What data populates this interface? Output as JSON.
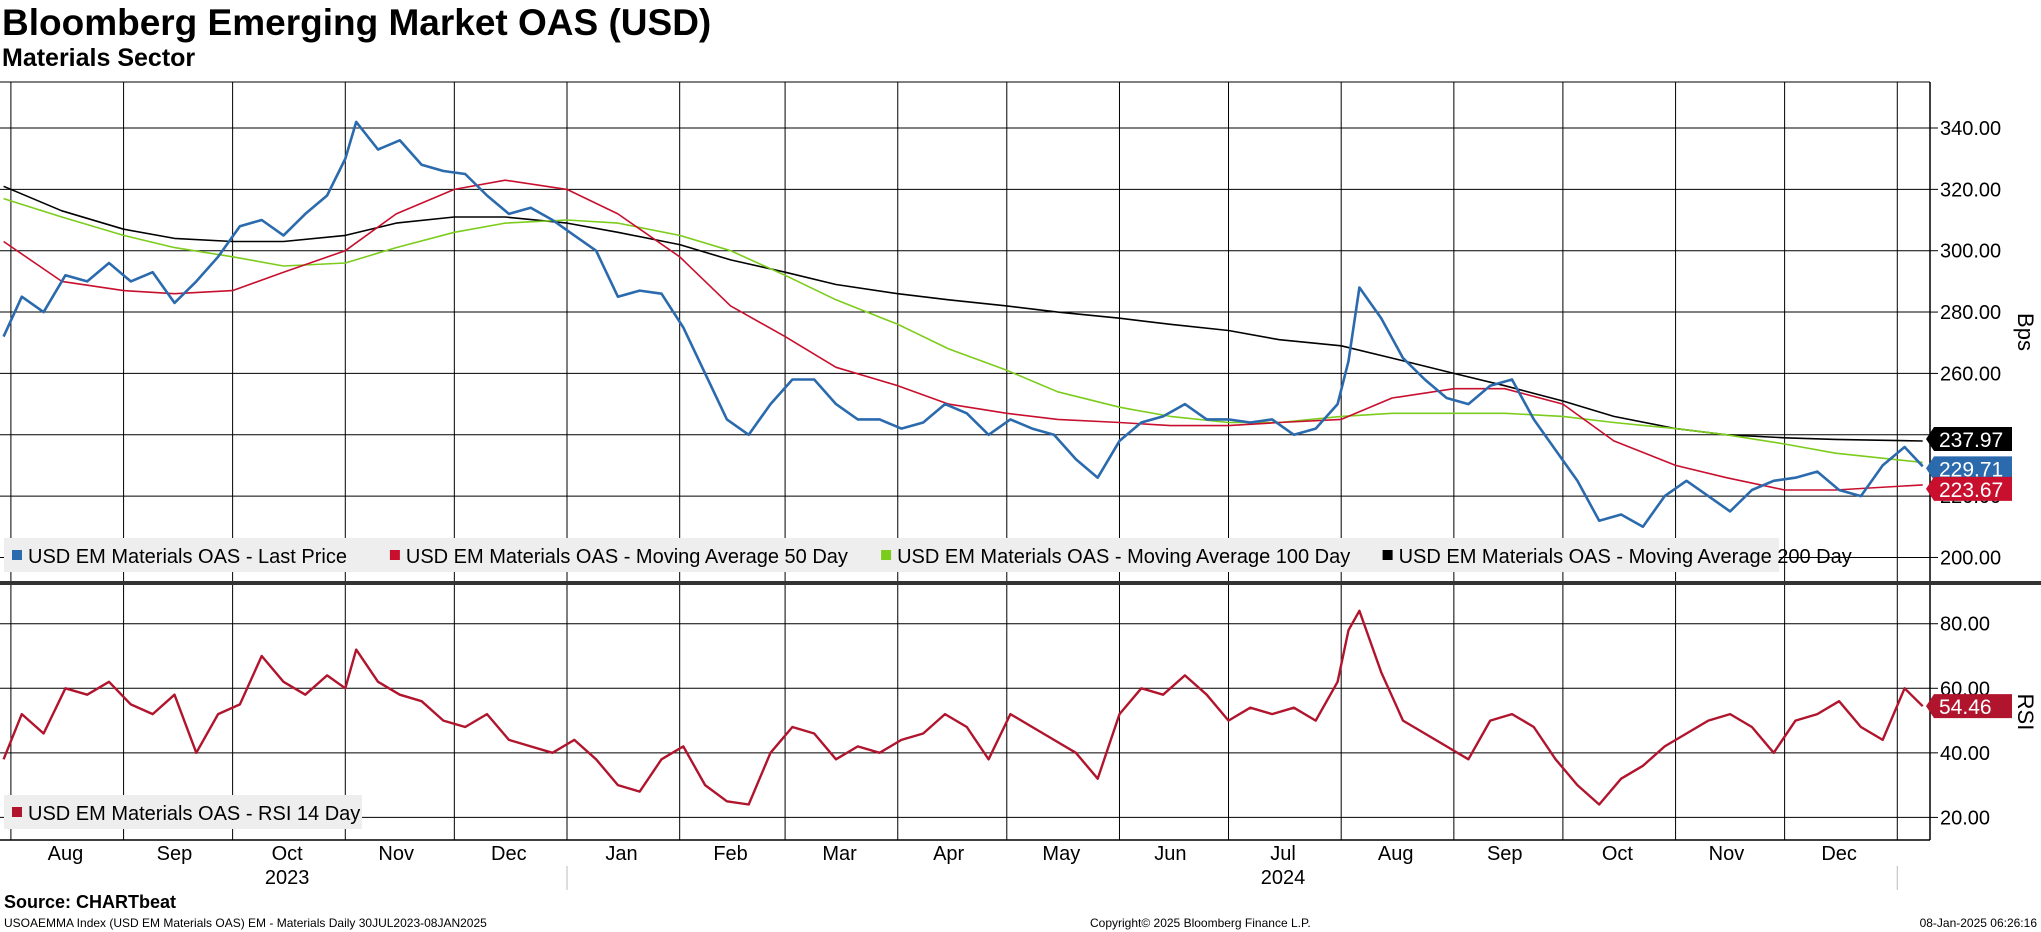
{
  "header": {
    "title": "Bloomberg Emerging Market OAS (USD)",
    "subtitle": "Materials Sector"
  },
  "footer": {
    "source": "Source: CHARTbeat",
    "description": "USOAEMMA Index (USD EM Materials OAS) EM - Materials  Daily 30JUL2023-08JAN2025",
    "copyright": "Copyright© 2025 Bloomberg Finance L.P.",
    "timestamp": "08-Jan-2025 06:26:16"
  },
  "colors": {
    "last_price": "#2a6aad",
    "ma50": "#c8102e",
    "ma100": "#7ccc1c",
    "ma200": "#000000",
    "rsi": "#b0152d",
    "grid": "#000000"
  },
  "chart_data": [
    {
      "type": "line",
      "panel": "price",
      "ylabel": "Bps",
      "ylim": [
        192,
        355
      ],
      "yticks": [
        "200.00",
        "220.00",
        "240.00",
        "260.00",
        "280.00",
        "300.00",
        "320.00",
        "340.00"
      ],
      "ytick_values": [
        200,
        220,
        240,
        260,
        280,
        300,
        320,
        340
      ],
      "x_axis": {
        "start": "2023-07-30",
        "end": "2025-01-08",
        "month_labels": [
          "Aug",
          "Sep",
          "Oct",
          "Nov",
          "Dec",
          "Jan",
          "Feb",
          "Mar",
          "Apr",
          "May",
          "Jun",
          "Jul",
          "Aug",
          "Sep",
          "Oct",
          "Nov",
          "Dec"
        ],
        "month_label_dates": [
          "2023-08-16",
          "2023-09-15",
          "2023-10-16",
          "2023-11-15",
          "2023-12-16",
          "2024-01-16",
          "2024-02-15",
          "2024-03-16",
          "2024-04-15",
          "2024-05-16",
          "2024-06-15",
          "2024-07-16",
          "2024-08-16",
          "2024-09-15",
          "2024-10-16",
          "2024-11-15",
          "2024-12-16"
        ],
        "gridline_dates": [
          "2023-08-01",
          "2023-09-01",
          "2023-10-01",
          "2023-11-01",
          "2023-12-01",
          "2024-01-01",
          "2024-02-01",
          "2024-03-01",
          "2024-04-01",
          "2024-05-01",
          "2024-06-01",
          "2024-07-01",
          "2024-08-01",
          "2024-09-01",
          "2024-10-01",
          "2024-11-01",
          "2024-12-01",
          "2025-01-01"
        ],
        "year_labels": [
          "2023",
          "2024"
        ],
        "year_label_dates": [
          "2023-10-16",
          "2024-07-16"
        ]
      },
      "legend": {
        "placement": "bottom-left",
        "entries": [
          "USD EM Materials OAS - Last Price",
          "USD EM Materials OAS - Moving Average 50 Day",
          "USD EM Materials OAS - Moving Average 100 Day",
          "USD EM Materials OAS - Moving Average 200 Day"
        ]
      },
      "last_value_labels": [
        {
          "series": "ma200",
          "text": "237.97",
          "value": 237.97
        },
        {
          "series": "last_price",
          "text": "229.71",
          "value": 229.71
        },
        {
          "series": "ma50",
          "text": "223.67",
          "value": 223.67
        }
      ],
      "series": [
        {
          "name": "USD EM Materials OAS - Last Price",
          "key": "last_price",
          "x": [
            "2023-07-30",
            "2023-08-04",
            "2023-08-10",
            "2023-08-16",
            "2023-08-22",
            "2023-08-28",
            "2023-09-03",
            "2023-09-09",
            "2023-09-15",
            "2023-09-21",
            "2023-09-27",
            "2023-10-03",
            "2023-10-09",
            "2023-10-15",
            "2023-10-21",
            "2023-10-27",
            "2023-11-01",
            "2023-11-04",
            "2023-11-10",
            "2023-11-16",
            "2023-11-22",
            "2023-11-28",
            "2023-12-04",
            "2023-12-10",
            "2023-12-16",
            "2023-12-22",
            "2023-12-28",
            "2024-01-03",
            "2024-01-09",
            "2024-01-15",
            "2024-01-21",
            "2024-01-27",
            "2024-02-02",
            "2024-02-08",
            "2024-02-14",
            "2024-02-20",
            "2024-02-26",
            "2024-03-03",
            "2024-03-09",
            "2024-03-15",
            "2024-03-21",
            "2024-03-27",
            "2024-04-02",
            "2024-04-08",
            "2024-04-14",
            "2024-04-20",
            "2024-04-26",
            "2024-05-02",
            "2024-05-08",
            "2024-05-14",
            "2024-05-20",
            "2024-05-26",
            "2024-06-01",
            "2024-06-07",
            "2024-06-13",
            "2024-06-19",
            "2024-06-25",
            "2024-07-01",
            "2024-07-07",
            "2024-07-13",
            "2024-07-19",
            "2024-07-25",
            "2024-07-31",
            "2024-08-03",
            "2024-08-06",
            "2024-08-12",
            "2024-08-18",
            "2024-08-24",
            "2024-08-30",
            "2024-09-05",
            "2024-09-11",
            "2024-09-17",
            "2024-09-23",
            "2024-09-29",
            "2024-10-05",
            "2024-10-11",
            "2024-10-17",
            "2024-10-23",
            "2024-10-29",
            "2024-11-04",
            "2024-11-10",
            "2024-11-16",
            "2024-11-22",
            "2024-11-28",
            "2024-12-04",
            "2024-12-10",
            "2024-12-16",
            "2024-12-22",
            "2024-12-28",
            "2025-01-03",
            "2025-01-08"
          ],
          "values": [
            272,
            285,
            280,
            292,
            290,
            296,
            290,
            293,
            283,
            290,
            298,
            308,
            310,
            305,
            312,
            318,
            330,
            342,
            333,
            336,
            328,
            326,
            325,
            318,
            312,
            314,
            310,
            305,
            300,
            285,
            287,
            286,
            275,
            260,
            245,
            240,
            250,
            258,
            258,
            250,
            245,
            245,
            242,
            244,
            250,
            247,
            240,
            245,
            242,
            240,
            232,
            226,
            238,
            244,
            246,
            250,
            245,
            245,
            244,
            245,
            240,
            242,
            250,
            264,
            288,
            278,
            265,
            258,
            252,
            250,
            256,
            258,
            245,
            235,
            225,
            212,
            214,
            210,
            220,
            225,
            220,
            215,
            222,
            225,
            226,
            228,
            222,
            220,
            230,
            236,
            229.71
          ]
        },
        {
          "name": "USD EM Materials OAS - Moving Average 50 Day",
          "key": "ma50",
          "x": [
            "2023-07-30",
            "2023-08-15",
            "2023-09-01",
            "2023-09-15",
            "2023-10-01",
            "2023-10-15",
            "2023-11-01",
            "2023-11-15",
            "2023-12-01",
            "2023-12-15",
            "2024-01-01",
            "2024-01-15",
            "2024-02-01",
            "2024-02-15",
            "2024-03-01",
            "2024-03-15",
            "2024-04-01",
            "2024-04-15",
            "2024-05-01",
            "2024-05-15",
            "2024-06-01",
            "2024-06-15",
            "2024-07-01",
            "2024-07-15",
            "2024-08-01",
            "2024-08-15",
            "2024-09-01",
            "2024-09-15",
            "2024-10-01",
            "2024-10-15",
            "2024-11-01",
            "2024-11-15",
            "2024-12-01",
            "2024-12-15",
            "2025-01-08"
          ],
          "values": [
            303,
            290,
            287,
            286,
            287,
            293,
            300,
            312,
            320,
            323,
            320,
            312,
            298,
            282,
            272,
            262,
            256,
            250,
            247,
            245,
            244,
            243,
            243,
            244,
            245,
            252,
            255,
            255,
            250,
            238,
            230,
            226,
            222,
            222,
            223.67
          ]
        },
        {
          "name": "USD EM Materials OAS - Moving Average 100 Day",
          "key": "ma100",
          "x": [
            "2023-07-30",
            "2023-08-15",
            "2023-09-01",
            "2023-09-15",
            "2023-10-01",
            "2023-10-15",
            "2023-11-01",
            "2023-11-15",
            "2023-12-01",
            "2023-12-15",
            "2024-01-01",
            "2024-01-15",
            "2024-02-01",
            "2024-02-15",
            "2024-03-01",
            "2024-03-15",
            "2024-04-01",
            "2024-04-15",
            "2024-05-01",
            "2024-05-15",
            "2024-06-01",
            "2024-06-15",
            "2024-07-01",
            "2024-07-15",
            "2024-08-01",
            "2024-08-15",
            "2024-09-01",
            "2024-09-15",
            "2024-10-01",
            "2024-10-15",
            "2024-11-01",
            "2024-11-15",
            "2024-12-01",
            "2024-12-15",
            "2025-01-08"
          ],
          "values": [
            317,
            311,
            305,
            301,
            298,
            295,
            296,
            301,
            306,
            309,
            310,
            309,
            305,
            300,
            292,
            284,
            276,
            268,
            261,
            254,
            249,
            246,
            244,
            244,
            246,
            247,
            247,
            247,
            246,
            244,
            242,
            240,
            237,
            234,
            231
          ]
        },
        {
          "name": "USD EM Materials OAS - Moving Average 200 Day",
          "key": "ma200",
          "x": [
            "2023-07-30",
            "2023-08-15",
            "2023-09-01",
            "2023-09-15",
            "2023-10-01",
            "2023-10-15",
            "2023-11-01",
            "2023-11-15",
            "2023-12-01",
            "2023-12-15",
            "2024-01-01",
            "2024-01-15",
            "2024-02-01",
            "2024-02-15",
            "2024-03-01",
            "2024-03-15",
            "2024-04-01",
            "2024-04-15",
            "2024-05-01",
            "2024-05-15",
            "2024-06-01",
            "2024-06-15",
            "2024-07-01",
            "2024-07-15",
            "2024-08-01",
            "2024-08-15",
            "2024-09-01",
            "2024-09-15",
            "2024-10-01",
            "2024-10-15",
            "2024-11-01",
            "2024-11-15",
            "2024-12-01",
            "2024-12-15",
            "2025-01-08"
          ],
          "values": [
            321,
            313,
            307,
            304,
            303,
            303,
            305,
            309,
            311,
            311,
            309,
            306,
            302,
            297,
            293,
            289,
            286,
            284,
            282,
            280,
            278,
            276,
            274,
            271,
            269,
            265,
            260,
            256,
            251,
            246,
            242,
            240,
            239,
            238.5,
            237.97
          ]
        }
      ]
    },
    {
      "type": "line",
      "panel": "rsi",
      "ylabel": "RSI",
      "ylim": [
        13,
        92
      ],
      "yticks": [
        "20.00",
        "40.00",
        "60.00",
        "80.00"
      ],
      "ytick_values": [
        20,
        40,
        60,
        80
      ],
      "legend": {
        "placement": "bottom-left",
        "entries": [
          "USD EM Materials OAS - RSI 14 Day"
        ]
      },
      "last_value_labels": [
        {
          "series": "rsi",
          "text": "54.46",
          "value": 54.46
        }
      ],
      "series": [
        {
          "name": "USD EM Materials OAS - RSI 14 Day",
          "key": "rsi",
          "x": [
            "2023-07-30",
            "2023-08-04",
            "2023-08-10",
            "2023-08-16",
            "2023-08-22",
            "2023-08-28",
            "2023-09-03",
            "2023-09-09",
            "2023-09-15",
            "2023-09-21",
            "2023-09-27",
            "2023-10-03",
            "2023-10-09",
            "2023-10-15",
            "2023-10-21",
            "2023-10-27",
            "2023-11-01",
            "2023-11-04",
            "2023-11-10",
            "2023-11-16",
            "2023-11-22",
            "2023-11-28",
            "2023-12-04",
            "2023-12-10",
            "2023-12-16",
            "2023-12-22",
            "2023-12-28",
            "2024-01-03",
            "2024-01-09",
            "2024-01-15",
            "2024-01-21",
            "2024-01-27",
            "2024-02-02",
            "2024-02-08",
            "2024-02-14",
            "2024-02-20",
            "2024-02-26",
            "2024-03-03",
            "2024-03-09",
            "2024-03-15",
            "2024-03-21",
            "2024-03-27",
            "2024-04-02",
            "2024-04-08",
            "2024-04-14",
            "2024-04-20",
            "2024-04-26",
            "2024-05-02",
            "2024-05-08",
            "2024-05-14",
            "2024-05-20",
            "2024-05-26",
            "2024-06-01",
            "2024-06-07",
            "2024-06-13",
            "2024-06-19",
            "2024-06-25",
            "2024-07-01",
            "2024-07-07",
            "2024-07-13",
            "2024-07-19",
            "2024-07-25",
            "2024-07-31",
            "2024-08-03",
            "2024-08-06",
            "2024-08-12",
            "2024-08-18",
            "2024-08-24",
            "2024-08-30",
            "2024-09-05",
            "2024-09-11",
            "2024-09-17",
            "2024-09-23",
            "2024-09-29",
            "2024-10-05",
            "2024-10-11",
            "2024-10-17",
            "2024-10-23",
            "2024-10-29",
            "2024-11-04",
            "2024-11-10",
            "2024-11-16",
            "2024-11-22",
            "2024-11-28",
            "2024-12-04",
            "2024-12-10",
            "2024-12-16",
            "2024-12-22",
            "2024-12-28",
            "2025-01-03",
            "2025-01-08"
          ],
          "values": [
            38,
            52,
            46,
            60,
            58,
            62,
            55,
            52,
            58,
            40,
            52,
            55,
            70,
            62,
            58,
            64,
            60,
            72,
            62,
            58,
            56,
            50,
            48,
            52,
            44,
            42,
            40,
            44,
            38,
            30,
            28,
            38,
            42,
            30,
            25,
            24,
            40,
            48,
            46,
            38,
            42,
            40,
            44,
            46,
            52,
            48,
            38,
            52,
            48,
            44,
            40,
            32,
            52,
            60,
            58,
            64,
            58,
            50,
            54,
            52,
            54,
            50,
            62,
            78,
            84,
            65,
            50,
            46,
            42,
            38,
            50,
            52,
            48,
            38,
            30,
            24,
            32,
            36,
            42,
            46,
            50,
            52,
            48,
            40,
            50,
            52,
            56,
            48,
            44,
            60,
            54.46
          ]
        }
      ]
    }
  ]
}
